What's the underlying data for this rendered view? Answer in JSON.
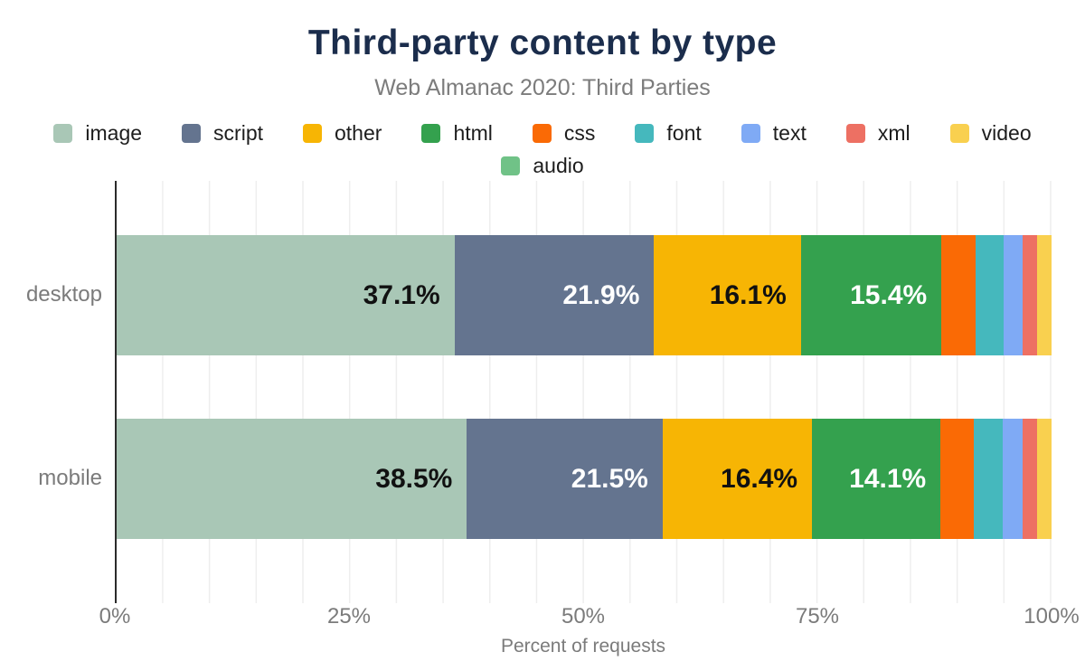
{
  "header": {
    "title": "Third-party content by type",
    "subtitle": "Web Almanac 2020: Third Parties"
  },
  "chart_data": {
    "type": "bar",
    "stacked": true,
    "orientation": "horizontal",
    "title": "Third-party content by type",
    "subtitle": "Web Almanac 2020: Third Parties",
    "categories": [
      "desktop",
      "mobile"
    ],
    "series": [
      {
        "name": "image",
        "color": "#a9c7b6",
        "label_color": "#111111",
        "values": [
          37.1,
          38.5
        ]
      },
      {
        "name": "script",
        "color": "#64748f",
        "label_color": "#ffffff",
        "values": [
          21.9,
          21.5
        ]
      },
      {
        "name": "other",
        "color": "#f7b504",
        "label_color": "#111111",
        "values": [
          16.1,
          16.4
        ]
      },
      {
        "name": "html",
        "color": "#34a14e",
        "label_color": "#ffffff",
        "values": [
          15.4,
          14.1
        ]
      },
      {
        "name": "css",
        "color": "#fa6a05",
        "label_color": "#ffffff",
        "values": [
          3.7,
          3.6
        ]
      },
      {
        "name": "font",
        "color": "#45b8bd",
        "label_color": "#ffffff",
        "values": [
          3.1,
          3.2
        ]
      },
      {
        "name": "text",
        "color": "#7faaf5",
        "label_color": "#ffffff",
        "values": [
          2.0,
          2.1
        ]
      },
      {
        "name": "xml",
        "color": "#ed7063",
        "label_color": "#ffffff",
        "values": [
          0.4,
          0.3
        ]
      },
      {
        "name": "video",
        "color": "#f9d04f",
        "label_color": "#111111",
        "values": [
          0.3,
          0.3
        ]
      },
      {
        "name": "audio",
        "color": "#70c287",
        "label_color": "#ffffff",
        "values": [
          0.0,
          0.0
        ]
      }
    ],
    "bar_labels": {
      "desktop": [
        "37.1%",
        "21.9%",
        "16.1%",
        "15.4%"
      ],
      "mobile": [
        "38.5%",
        "21.5%",
        "16.4%",
        "14.1%"
      ]
    },
    "label_threshold": 10,
    "xlabel": "Percent of requests",
    "x_ticks": [
      "0%",
      "25%",
      "50%",
      "75%",
      "100%"
    ],
    "xlim": [
      0,
      100
    ],
    "grid": "vertical, every 5%",
    "legend_position": "top",
    "legend_row_break": 9,
    "colors": {
      "title": "#1b2d4c",
      "subtitle_text": "#7c7c7c",
      "axis_line": "#2b2b2b",
      "gridline": "#eeeeee",
      "tick_text": "#7b7b7b"
    }
  }
}
